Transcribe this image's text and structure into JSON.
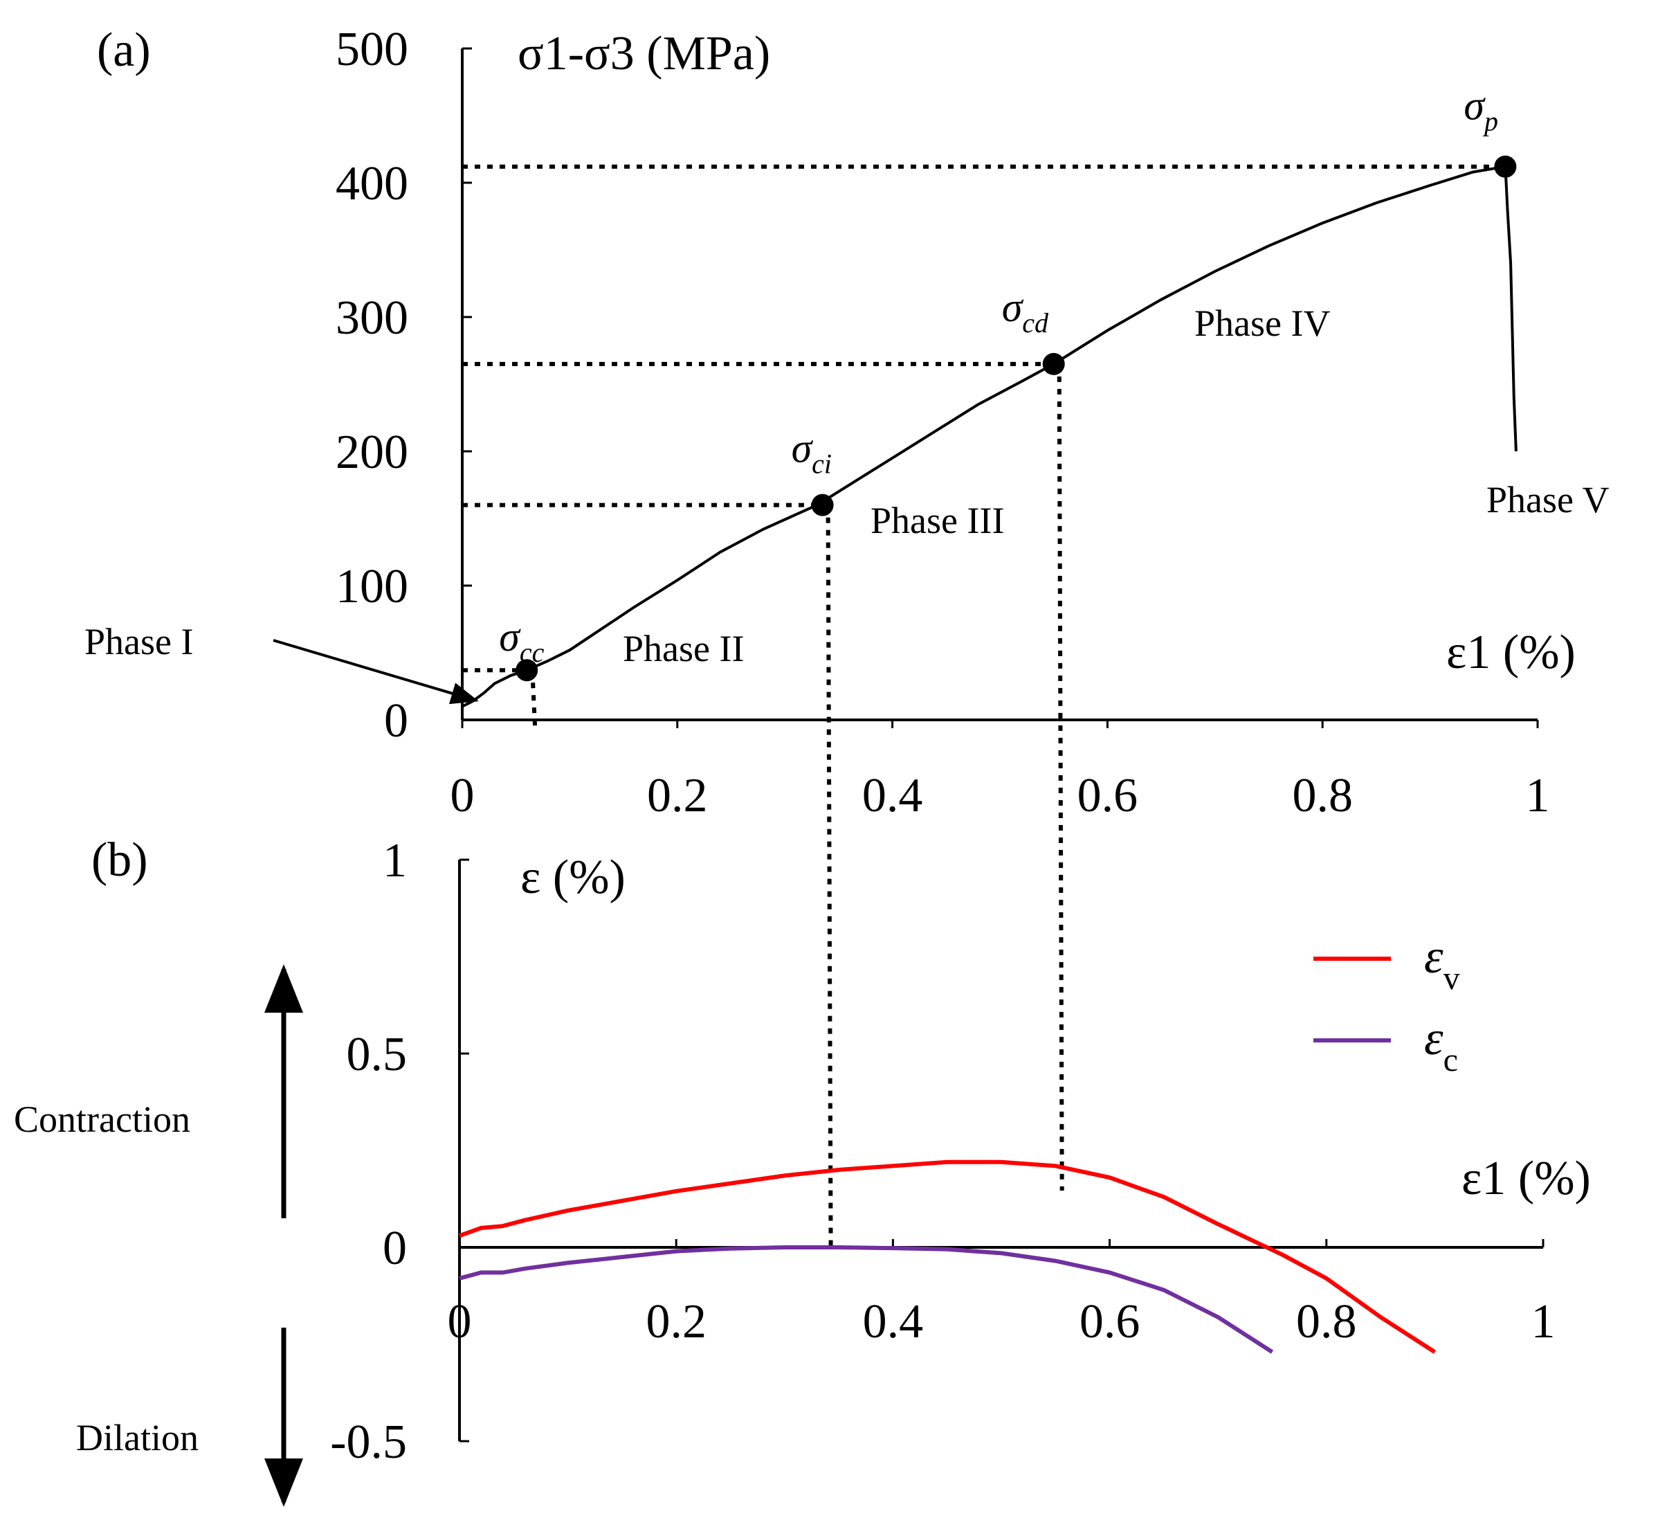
{
  "chart_data": [
    {
      "panel_label": "(a)",
      "type": "line",
      "ylabel": "σ1-σ3 (MPa)",
      "xlabel": "ε1 (%)",
      "xlim": [
        0,
        1
      ],
      "ylim": [
        0,
        500
      ],
      "xticks": [
        0,
        0.2,
        0.4,
        0.6,
        0.8,
        1
      ],
      "xtick_labels": [
        "0",
        "0.2",
        "0.4",
        "0.6",
        "0.8",
        "1"
      ],
      "yticks": [
        0,
        100,
        200,
        300,
        400,
        500
      ],
      "ytick_labels": [
        "0",
        "100",
        "200",
        "300",
        "400",
        "500"
      ],
      "grid": false,
      "series": [
        {
          "color": "#000000",
          "x": [
            0,
            0.01,
            0.02,
            0.03,
            0.045,
            0.06,
            0.08,
            0.1,
            0.13,
            0.16,
            0.2,
            0.24,
            0.28,
            0.33,
            0.38,
            0.43,
            0.48,
            0.52,
            0.55,
            0.6,
            0.65,
            0.7,
            0.75,
            0.8,
            0.85,
            0.9,
            0.94,
            0.97
          ],
          "y": [
            10,
            14,
            20,
            27,
            33,
            37,
            44,
            52,
            68,
            84,
            104,
            125,
            142,
            160,
            185,
            210,
            235,
            252,
            265,
            290,
            313,
            334,
            353,
            370,
            385,
            398,
            408,
            412
          ]
        },
        {
          "color": "#000000",
          "x": [
            0.97,
            0.972,
            0.975,
            0.978,
            0.98
          ],
          "y": [
            412,
            380,
            340,
            240,
            200
          ]
        }
      ],
      "key_points": [
        {
          "label_main": "σ",
          "label_sub": "cc",
          "x": 0.06,
          "y": 37
        },
        {
          "label_main": "σ",
          "label_sub": "ci",
          "x": 0.335,
          "y": 160
        },
        {
          "label_main": "σ",
          "label_sub": "cd",
          "x": 0.55,
          "y": 265
        },
        {
          "label_main": "σ",
          "label_sub": "p",
          "x": 0.97,
          "y": 412
        }
      ],
      "annotations": [
        "Phase I",
        "Phase II",
        "Phase III",
        "Phase IV",
        "Phase V"
      ]
    },
    {
      "panel_label": "(b)",
      "type": "line",
      "ylabel": "ε (%)",
      "xlabel": "ε1 (%)",
      "xlim": [
        0,
        1
      ],
      "ylim": [
        -0.5,
        1
      ],
      "xticks": [
        0,
        0.2,
        0.4,
        0.6,
        0.8,
        1
      ],
      "xtick_labels": [
        "0",
        "0.2",
        "0.4",
        "0.6",
        "0.8",
        "1"
      ],
      "yticks": [
        -0.5,
        0,
        0.5,
        1
      ],
      "ytick_labels": [
        "-0.5",
        "0",
        "0.5",
        "1"
      ],
      "grid": false,
      "legend_position": "right",
      "series": [
        {
          "name_main": "ε",
          "name_sub": "v",
          "color": "#ff0000",
          "x": [
            0,
            0.02,
            0.04,
            0.06,
            0.1,
            0.15,
            0.2,
            0.25,
            0.3,
            0.35,
            0.4,
            0.45,
            0.5,
            0.55,
            0.6,
            0.65,
            0.7,
            0.73,
            0.76,
            0.8,
            0.85,
            0.9
          ],
          "y": [
            0.03,
            0.05,
            0.055,
            0.07,
            0.095,
            0.12,
            0.145,
            0.165,
            0.185,
            0.2,
            0.21,
            0.22,
            0.22,
            0.21,
            0.18,
            0.13,
            0.06,
            0.02,
            -0.02,
            -0.08,
            -0.18,
            -0.27
          ]
        },
        {
          "name_main": "ε",
          "name_sub": "c",
          "color": "#7030a0",
          "x": [
            0,
            0.02,
            0.04,
            0.06,
            0.1,
            0.15,
            0.2,
            0.25,
            0.3,
            0.35,
            0.4,
            0.45,
            0.5,
            0.55,
            0.6,
            0.65,
            0.7,
            0.75
          ],
          "y": [
            -0.08,
            -0.065,
            -0.065,
            -0.055,
            -0.04,
            -0.025,
            -0.01,
            -0.003,
            0,
            0,
            -0.002,
            -0.005,
            -0.015,
            -0.035,
            -0.065,
            -0.11,
            -0.18,
            -0.27
          ]
        }
      ],
      "annotations": [
        "Contraction",
        "Dilation"
      ]
    }
  ]
}
